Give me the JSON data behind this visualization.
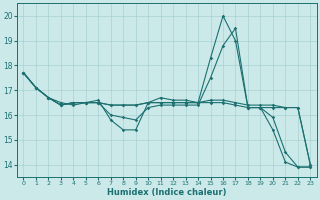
{
  "xlabel": "Humidex (Indice chaleur)",
  "xlim_min": -0.5,
  "xlim_max": 23.5,
  "ylim_min": 13.5,
  "ylim_max": 20.5,
  "xticks": [
    0,
    1,
    2,
    3,
    4,
    5,
    6,
    7,
    8,
    9,
    10,
    11,
    12,
    13,
    14,
    15,
    16,
    17,
    18,
    19,
    20,
    21,
    22,
    23
  ],
  "yticks": [
    14,
    15,
    16,
    17,
    18,
    19,
    20
  ],
  "bg_color": "#cce9ea",
  "line_color": "#1c7070",
  "grid_color": "#a0cccc",
  "lines": [
    [
      17.7,
      17.1,
      16.7,
      16.4,
      16.5,
      16.5,
      16.6,
      15.8,
      15.4,
      15.4,
      16.5,
      16.7,
      16.6,
      16.6,
      16.5,
      18.3,
      20.0,
      19.0,
      16.3,
      16.3,
      15.4,
      14.1,
      13.9,
      13.9
    ],
    [
      17.7,
      17.1,
      16.7,
      16.5,
      16.4,
      16.5,
      16.5,
      16.0,
      15.9,
      15.8,
      16.3,
      16.4,
      16.4,
      16.4,
      16.4,
      17.5,
      18.8,
      19.5,
      16.3,
      16.3,
      15.9,
      14.5,
      13.9,
      13.9
    ],
    [
      17.7,
      17.1,
      16.7,
      16.4,
      16.5,
      16.5,
      16.5,
      16.4,
      16.4,
      16.4,
      16.5,
      16.5,
      16.5,
      16.5,
      16.5,
      16.6,
      16.6,
      16.5,
      16.4,
      16.4,
      16.4,
      16.3,
      16.3,
      14.0
    ],
    [
      17.7,
      17.1,
      16.7,
      16.4,
      16.5,
      16.5,
      16.5,
      16.4,
      16.4,
      16.4,
      16.5,
      16.5,
      16.5,
      16.5,
      16.5,
      16.5,
      16.5,
      16.4,
      16.3,
      16.3,
      16.3,
      16.3,
      16.3,
      14.0
    ]
  ]
}
